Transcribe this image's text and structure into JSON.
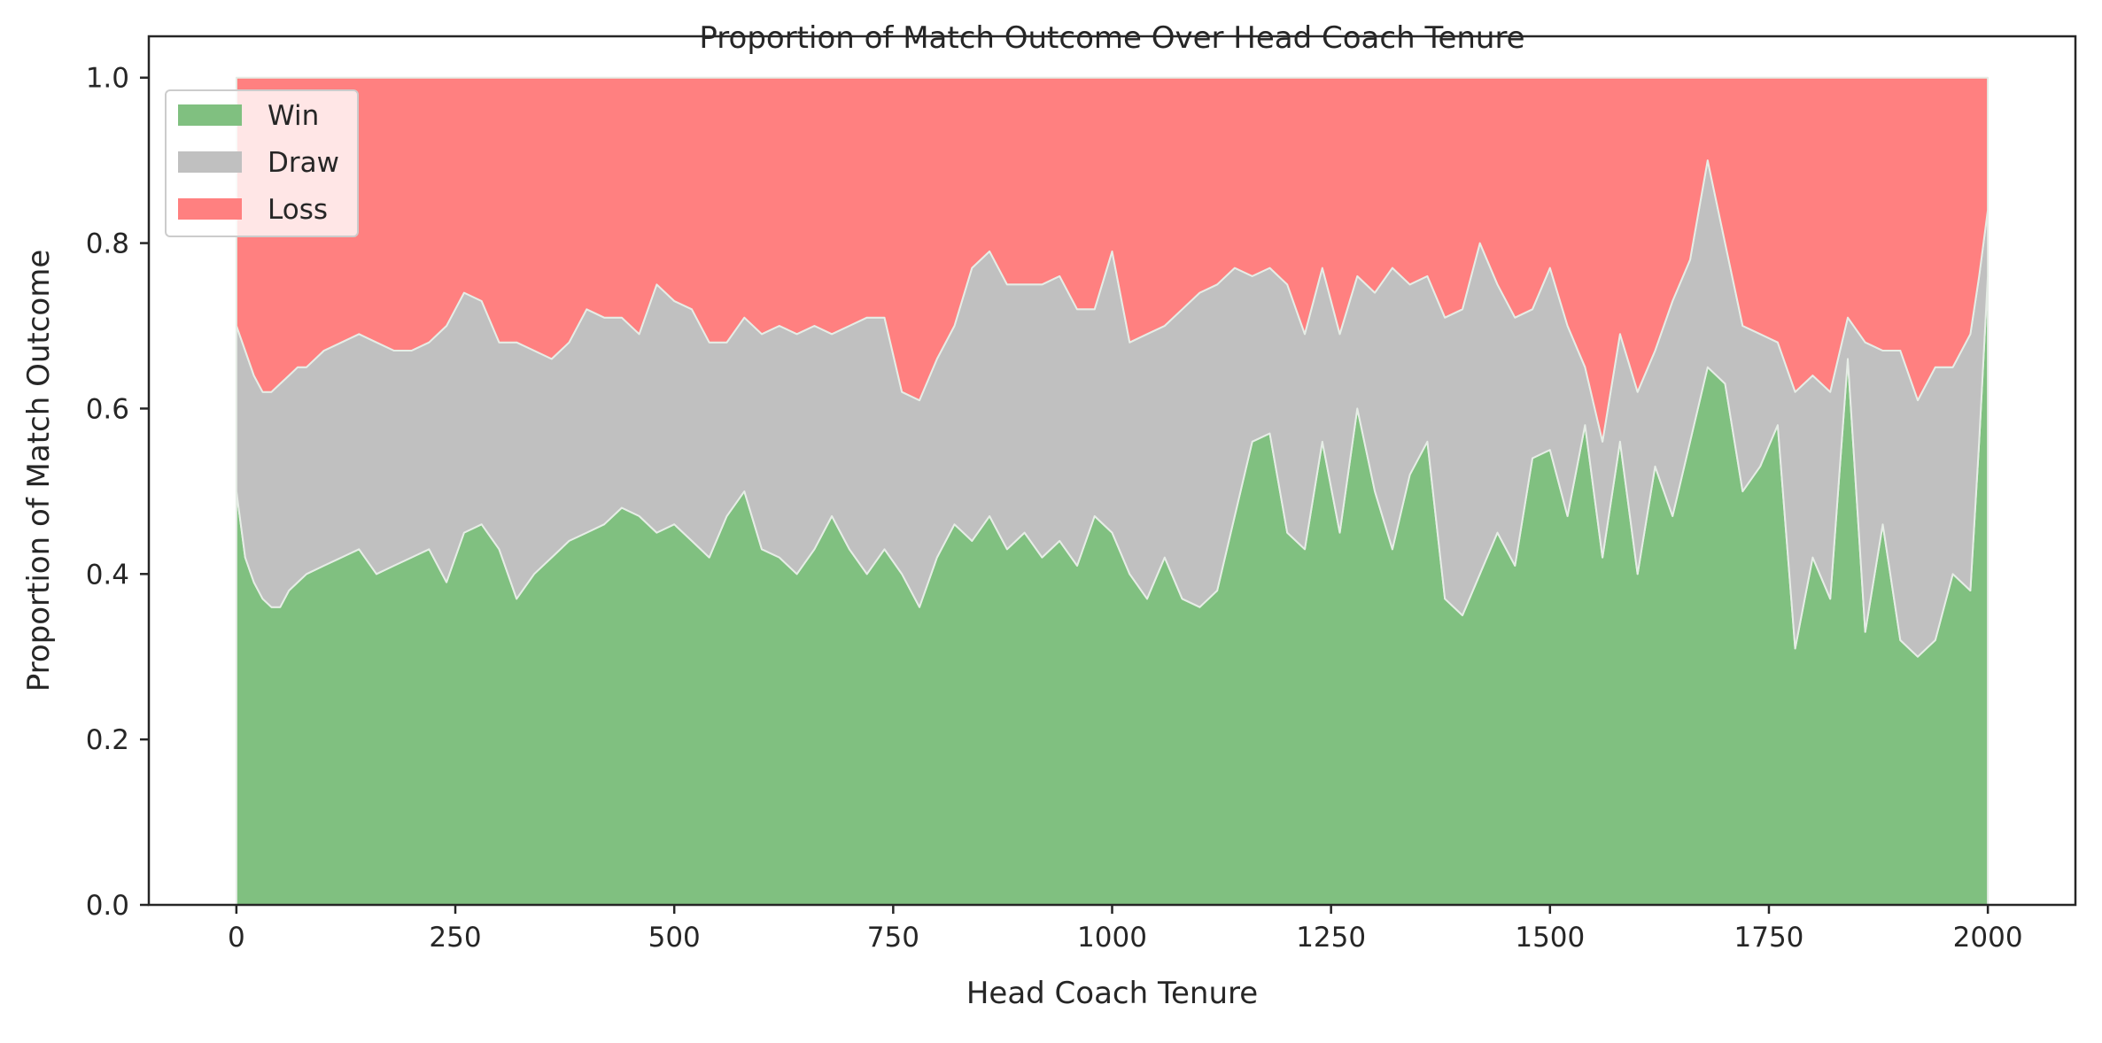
{
  "chart_data": {
    "type": "area",
    "stacked": true,
    "title": "Proportion of Match Outcome Over Head Coach Tenure",
    "xlabel": "Head Coach Tenure",
    "ylabel": "Proportion of Match Outcome",
    "xlim": [
      -100,
      2100
    ],
    "ylim": [
      0,
      1.05
    ],
    "xticks": [
      0,
      250,
      500,
      750,
      1000,
      1250,
      1500,
      1750,
      2000
    ],
    "yticks": [
      0.0,
      0.2,
      0.4,
      0.6,
      0.8,
      1.0
    ],
    "xtick_labels": [
      "0",
      "250",
      "500",
      "750",
      "1000",
      "1250",
      "1500",
      "1750",
      "2000"
    ],
    "ytick_labels": [
      "0.0",
      "0.2",
      "0.4",
      "0.6",
      "0.8",
      "1.0"
    ],
    "grid": false,
    "legend": "top-left",
    "colors": {
      "Win": "#80c080",
      "Draw": "#c0c0c0",
      "Loss": "#ff8080",
      "edge": "#e6ede6"
    },
    "x": [
      0,
      10,
      20,
      30,
      40,
      50,
      60,
      70,
      80,
      100,
      120,
      140,
      160,
      180,
      200,
      220,
      240,
      260,
      280,
      300,
      320,
      340,
      360,
      380,
      400,
      420,
      440,
      460,
      480,
      500,
      520,
      540,
      560,
      580,
      600,
      620,
      640,
      660,
      680,
      700,
      720,
      740,
      760,
      780,
      800,
      820,
      840,
      860,
      880,
      900,
      920,
      940,
      960,
      980,
      1000,
      1020,
      1040,
      1060,
      1080,
      1100,
      1120,
      1140,
      1160,
      1180,
      1200,
      1220,
      1240,
      1260,
      1280,
      1300,
      1320,
      1340,
      1360,
      1380,
      1400,
      1420,
      1440,
      1460,
      1480,
      1500,
      1520,
      1540,
      1560,
      1580,
      1600,
      1620,
      1640,
      1660,
      1680,
      1700,
      1720,
      1740,
      1760,
      1780,
      1800,
      1820,
      1840,
      1860,
      1880,
      1900,
      1920,
      1940,
      1960,
      1980,
      1990,
      2000
    ],
    "series": [
      {
        "name": "Win",
        "values": [
          0.5,
          0.42,
          0.39,
          0.37,
          0.36,
          0.36,
          0.38,
          0.39,
          0.4,
          0.41,
          0.42,
          0.43,
          0.4,
          0.41,
          0.42,
          0.43,
          0.39,
          0.45,
          0.46,
          0.43,
          0.37,
          0.4,
          0.42,
          0.44,
          0.45,
          0.46,
          0.48,
          0.47,
          0.45,
          0.46,
          0.44,
          0.42,
          0.47,
          0.5,
          0.43,
          0.42,
          0.4,
          0.43,
          0.47,
          0.43,
          0.4,
          0.43,
          0.4,
          0.36,
          0.42,
          0.46,
          0.44,
          0.47,
          0.43,
          0.45,
          0.42,
          0.44,
          0.41,
          0.47,
          0.45,
          0.4,
          0.37,
          0.42,
          0.37,
          0.36,
          0.38,
          0.47,
          0.56,
          0.57,
          0.45,
          0.43,
          0.56,
          0.45,
          0.6,
          0.5,
          0.43,
          0.52,
          0.56,
          0.37,
          0.35,
          0.4,
          0.45,
          0.41,
          0.54,
          0.55,
          0.47,
          0.58,
          0.42,
          0.56,
          0.4,
          0.53,
          0.47,
          0.56,
          0.65,
          0.63,
          0.5,
          0.53,
          0.58,
          0.31,
          0.42,
          0.37,
          0.66,
          0.33,
          0.46,
          0.32,
          0.3,
          0.32,
          0.4,
          0.38,
          0.56,
          0.76
        ]
      },
      {
        "name": "Draw",
        "values": [
          0.2,
          0.25,
          0.25,
          0.25,
          0.26,
          0.27,
          0.26,
          0.26,
          0.25,
          0.26,
          0.26,
          0.26,
          0.28,
          0.26,
          0.25,
          0.25,
          0.31,
          0.29,
          0.27,
          0.25,
          0.31,
          0.27,
          0.24,
          0.24,
          0.27,
          0.25,
          0.23,
          0.22,
          0.3,
          0.27,
          0.28,
          0.26,
          0.21,
          0.21,
          0.26,
          0.28,
          0.29,
          0.27,
          0.22,
          0.27,
          0.31,
          0.28,
          0.22,
          0.25,
          0.24,
          0.24,
          0.33,
          0.32,
          0.32,
          0.3,
          0.33,
          0.32,
          0.31,
          0.25,
          0.34,
          0.28,
          0.32,
          0.28,
          0.35,
          0.38,
          0.37,
          0.3,
          0.2,
          0.2,
          0.3,
          0.26,
          0.21,
          0.24,
          0.16,
          0.24,
          0.34,
          0.23,
          0.2,
          0.34,
          0.37,
          0.4,
          0.3,
          0.3,
          0.18,
          0.22,
          0.23,
          0.07,
          0.14,
          0.13,
          0.22,
          0.14,
          0.26,
          0.22,
          0.25,
          0.17,
          0.2,
          0.16,
          0.1,
          0.31,
          0.22,
          0.25,
          0.05,
          0.35,
          0.21,
          0.35,
          0.31,
          0.33,
          0.25,
          0.31,
          0.2,
          0.08
        ]
      },
      {
        "name": "Loss",
        "values": [
          0.3,
          0.33,
          0.36,
          0.38,
          0.38,
          0.37,
          0.36,
          0.35,
          0.35,
          0.33,
          0.32,
          0.31,
          0.32,
          0.33,
          0.33,
          0.32,
          0.3,
          0.26,
          0.27,
          0.32,
          0.32,
          0.33,
          0.34,
          0.32,
          0.28,
          0.29,
          0.29,
          0.31,
          0.25,
          0.27,
          0.28,
          0.32,
          0.32,
          0.29,
          0.31,
          0.3,
          0.31,
          0.3,
          0.31,
          0.3,
          0.29,
          0.29,
          0.38,
          0.39,
          0.34,
          0.3,
          0.23,
          0.21,
          0.25,
          0.25,
          0.25,
          0.24,
          0.28,
          0.28,
          0.21,
          0.32,
          0.31,
          0.3,
          0.28,
          0.26,
          0.25,
          0.23,
          0.24,
          0.23,
          0.25,
          0.31,
          0.23,
          0.31,
          0.24,
          0.26,
          0.23,
          0.25,
          0.24,
          0.29,
          0.28,
          0.2,
          0.25,
          0.29,
          0.28,
          0.23,
          0.3,
          0.35,
          0.44,
          0.31,
          0.38,
          0.33,
          0.27,
          0.22,
          0.1,
          0.2,
          0.3,
          0.31,
          0.32,
          0.38,
          0.36,
          0.38,
          0.29,
          0.32,
          0.33,
          0.33,
          0.39,
          0.35,
          0.35,
          0.31,
          0.24,
          0.16
        ]
      }
    ]
  }
}
